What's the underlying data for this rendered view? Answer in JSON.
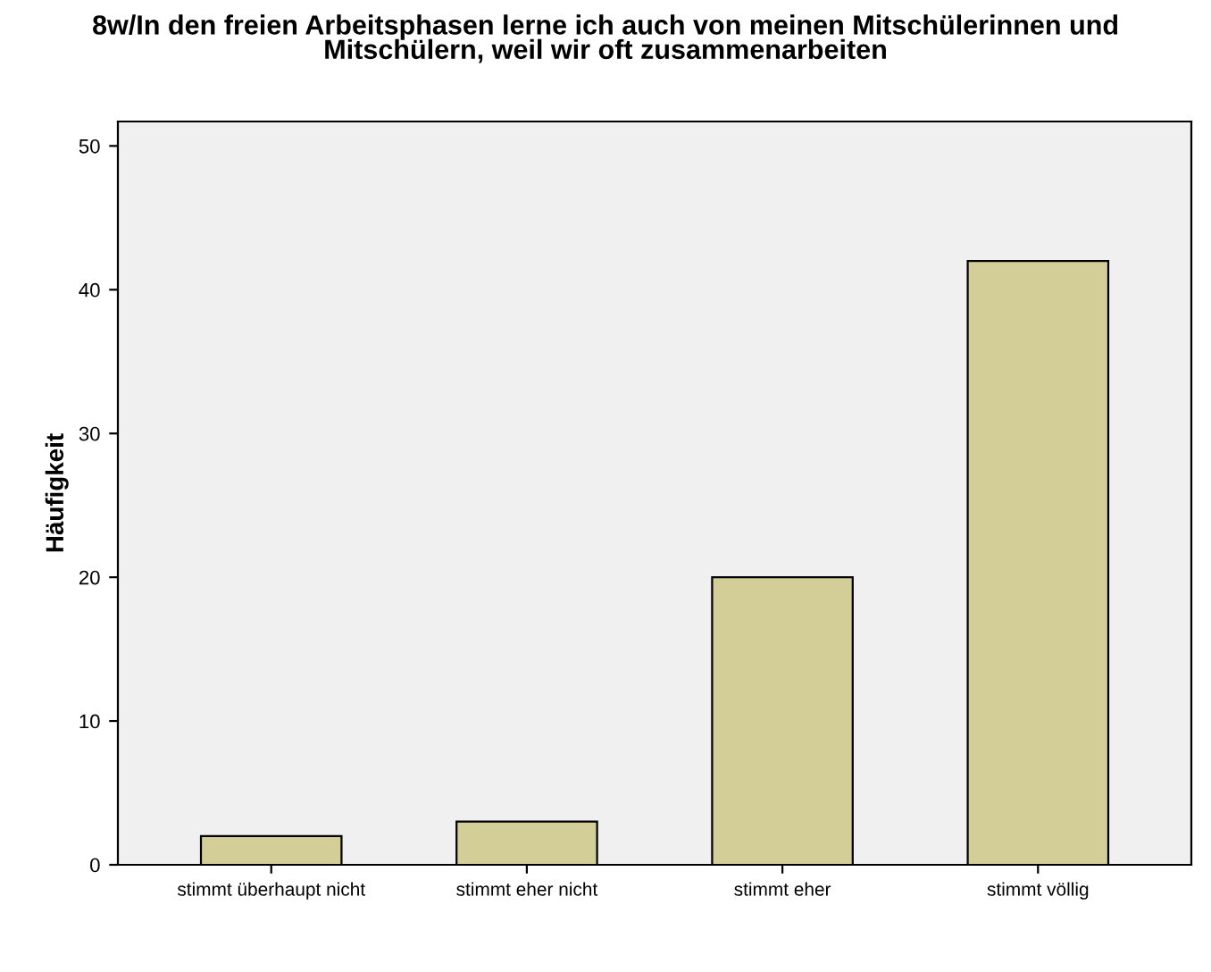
{
  "chart_data": {
    "type": "bar",
    "title": "8w/In den freien Arbeitsphasen lerne ich auch von meinen Mitschülerinnen und\nMitschülern, weil wir oft zusammenarbeiten",
    "ylabel": "Häufigkeit",
    "categories": [
      "stimmt überhaupt nicht",
      "stimmt eher nicht",
      "stimmt eher",
      "stimmt völlig"
    ],
    "values": [
      2,
      3,
      20,
      42
    ],
    "color": "#d3ce98",
    "ylim": [
      0,
      51.7
    ],
    "yticks": [
      0,
      10,
      20,
      30,
      40,
      50
    ],
    "grid": false
  }
}
